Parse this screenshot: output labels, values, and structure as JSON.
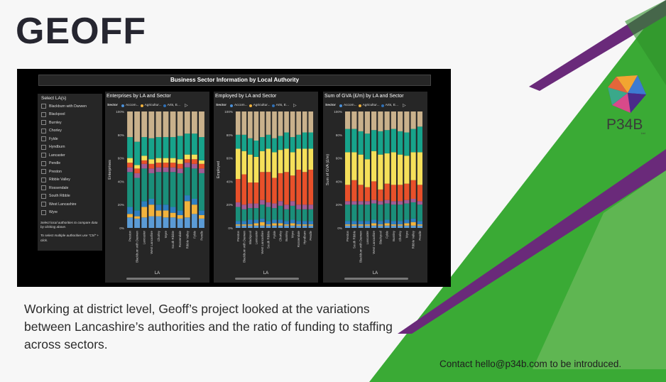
{
  "slide": {
    "title": "GEOFF",
    "caption": "Working at district level, Geoff’s project looked at the variations between Lancashire’s authorities and the ratio of funding to staffing across sectors.",
    "contact": "Contact hello@p34b.com to be introduced.",
    "logo_text": "P34B",
    "logo_sub": "Ltd",
    "colors": {
      "green": "#3aaa35",
      "purple": "#6a2a7a",
      "background": "#f7f7f7"
    }
  },
  "report": {
    "title": "Business Sector Information by Local Authority",
    "slicer": {
      "heading": "Select LA(s)",
      "items": [
        "Blackburn with Darwen",
        "Blackpool",
        "Burnley",
        "Chorley",
        "Fylde",
        "Hyndburn",
        "Lancaster",
        "Pendle",
        "Preston",
        "Ribble Valley",
        "Rossendale",
        "South Ribble",
        "West Lancashire",
        "Wyre"
      ],
      "note1": "Select local authorities to compare data by clicking above.",
      "note2": "To select multiple authorities use \"Ctrl\" + click."
    },
    "legend": {
      "label": "Sector",
      "entries": [
        {
          "name": "Accom...",
          "color": "#4a90d9"
        },
        {
          "name": "Agricultur...",
          "color": "#f2b33d"
        },
        {
          "name": "Arts, E...",
          "color": "#2f6fb5"
        }
      ],
      "more_icon": "play-right-icon"
    },
    "y_ticks": [
      "0%",
      "20%",
      "40%",
      "60%",
      "80%",
      "100%"
    ],
    "x_axis_label": "LA",
    "sector_colors": [
      "#5b9bd5",
      "#f2b33d",
      "#2e7fc0",
      "#1a8f7a",
      "#a05c95",
      "#e8502a",
      "#f5e05a",
      "#17a38b",
      "#c9b18c"
    ]
  },
  "chart_data": [
    {
      "type": "bar",
      "stacked": "100%",
      "title": "Enterprises by LA and Sector",
      "ylabel": "Enterprises",
      "xlabel": "LA",
      "ylim": [
        0,
        100
      ],
      "categories": [
        "Preston",
        "Blackburn with Darwen",
        "Lancaster",
        "West Lancashire",
        "Chorley",
        "Wyre",
        "South Ribble",
        "Rossendale",
        "Ribble Valley",
        "Fylde",
        "Pendle"
      ],
      "series": [
        {
          "name": "Accom...",
          "values": [
            9,
            8,
            9,
            10,
            10,
            9,
            9,
            8,
            9,
            12,
            8
          ]
        },
        {
          "name": "Agricultur...",
          "values": [
            3,
            2,
            9,
            10,
            5,
            6,
            4,
            3,
            14,
            8,
            3
          ]
        },
        {
          "name": "Arts, E...",
          "values": [
            6,
            5,
            5,
            5,
            5,
            5,
            5,
            4,
            5,
            5,
            4
          ]
        },
        {
          "values": [
            30,
            28,
            28,
            22,
            28,
            28,
            30,
            32,
            24,
            26,
            32
          ]
        },
        {
          "values": [
            4,
            4,
            4,
            4,
            4,
            4,
            4,
            4,
            4,
            4,
            4
          ]
        },
        {
          "values": [
            4,
            4,
            3,
            4,
            4,
            4,
            4,
            4,
            3,
            4,
            4
          ]
        },
        {
          "values": [
            4,
            3,
            4,
            4,
            4,
            4,
            4,
            4,
            4,
            4,
            3
          ]
        },
        {
          "values": [
            18,
            20,
            16,
            18,
            18,
            18,
            18,
            20,
            18,
            18,
            20
          ]
        },
        {
          "values": [
            22,
            26,
            22,
            23,
            22,
            22,
            22,
            21,
            19,
            19,
            22
          ]
        }
      ]
    },
    {
      "type": "bar",
      "stacked": "100%",
      "title": "Employed by LA and Sector",
      "ylabel": "Employed",
      "xlabel": "LA",
      "ylim": [
        0,
        100
      ],
      "categories": [
        "Preston",
        "Blackburn with Darwen",
        "Blackpool",
        "Lancaster",
        "West Lancashire",
        "South Ribble",
        "Fylde",
        "Chorley",
        "Burnley",
        "Wyre",
        "Rossendale",
        "Hyndburn",
        "Pendle"
      ],
      "series": [
        {
          "name": "Accom...",
          "values": [
            2,
            2,
            2,
            2,
            2,
            2,
            2,
            2,
            2,
            2,
            2,
            2,
            2
          ]
        },
        {
          "name": "Agricultur...",
          "values": [
            1,
            1,
            1,
            2,
            3,
            1,
            2,
            2,
            1,
            2,
            1,
            1,
            1
          ]
        },
        {
          "name": "Arts, E...",
          "values": [
            3,
            3,
            4,
            3,
            3,
            3,
            3,
            3,
            3,
            3,
            3,
            3,
            3
          ]
        },
        {
          "values": [
            12,
            10,
            10,
            10,
            12,
            12,
            10,
            12,
            10,
            12,
            10,
            10,
            10
          ]
        },
        {
          "values": [
            4,
            4,
            4,
            4,
            4,
            4,
            4,
            4,
            4,
            4,
            4,
            4,
            4
          ]
        },
        {
          "values": [
            20,
            26,
            18,
            18,
            24,
            26,
            22,
            24,
            28,
            22,
            30,
            28,
            30
          ]
        },
        {
          "values": [
            26,
            20,
            24,
            22,
            18,
            20,
            22,
            20,
            20,
            20,
            18,
            20,
            18
          ]
        },
        {
          "values": [
            12,
            14,
            14,
            14,
            12,
            12,
            12,
            12,
            14,
            13,
            12,
            14,
            14
          ]
        },
        {
          "values": [
            20,
            20,
            23,
            25,
            22,
            20,
            23,
            21,
            18,
            22,
            20,
            18,
            18
          ]
        }
      ]
    },
    {
      "type": "bar",
      "stacked": "100%",
      "title": "Sum of GVA (£/m) by LA and Sector",
      "ylabel": "Sum of GVA (£/m)",
      "xlabel": "LA",
      "ylim": [
        0,
        100
      ],
      "categories": [
        "Preston",
        "South Ribble",
        "Blackburn with Darwen",
        "Lancaster",
        "West Lancashire",
        "Blackpool",
        "Fylde",
        "Burnley",
        "Chorley",
        "Wyre",
        "Ribble Valley",
        "Pendle"
      ],
      "series": [
        {
          "name": "Accom...",
          "values": [
            2,
            2,
            2,
            2,
            2,
            2,
            2,
            2,
            2,
            2,
            2,
            2
          ]
        },
        {
          "name": "Agricultur...",
          "values": [
            1,
            1,
            1,
            1,
            2,
            1,
            2,
            1,
            1,
            2,
            3,
            1
          ]
        },
        {
          "name": "Arts, E...",
          "values": [
            3,
            3,
            3,
            3,
            3,
            3,
            3,
            3,
            3,
            3,
            3,
            3
          ]
        },
        {
          "values": [
            14,
            14,
            14,
            14,
            14,
            14,
            14,
            14,
            14,
            14,
            14,
            14
          ]
        },
        {
          "values": [
            3,
            3,
            3,
            3,
            3,
            3,
            3,
            3,
            3,
            3,
            3,
            3
          ]
        },
        {
          "values": [
            14,
            18,
            14,
            12,
            16,
            10,
            14,
            14,
            14,
            14,
            16,
            14
          ]
        },
        {
          "values": [
            28,
            24,
            26,
            24,
            26,
            30,
            26,
            28,
            26,
            24,
            24,
            28
          ]
        },
        {
          "values": [
            20,
            20,
            20,
            22,
            18,
            20,
            20,
            20,
            20,
            20,
            20,
            22
          ]
        },
        {
          "values": [
            15,
            15,
            17,
            19,
            16,
            17,
            16,
            15,
            17,
            18,
            15,
            13
          ]
        }
      ]
    }
  ]
}
